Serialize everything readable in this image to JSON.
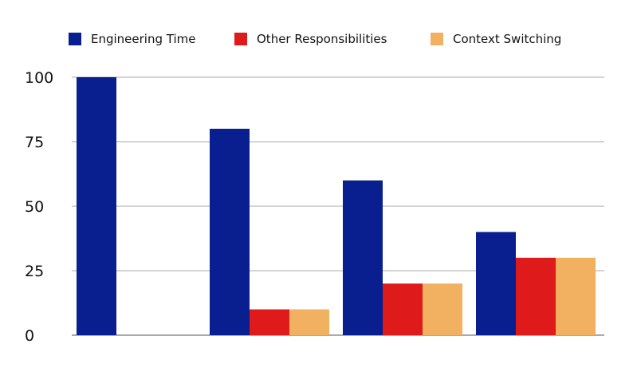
{
  "chart_data": {
    "type": "bar",
    "title": "",
    "xlabel": "",
    "ylabel": "",
    "categories": [
      "",
      "",
      "",
      ""
    ],
    "series": [
      {
        "name": "Engineering Time",
        "color": "#0a1f8f",
        "values": [
          100,
          80,
          60,
          40
        ]
      },
      {
        "name": "Other Responsibilities",
        "color": "#de1a1a",
        "values": [
          0,
          10,
          20,
          30
        ]
      },
      {
        "name": "Context Switching",
        "color": "#f2b061",
        "values": [
          0,
          10,
          20,
          30
        ]
      }
    ],
    "ylim": [
      0,
      100
    ],
    "yticks": [
      "0",
      "25",
      "50",
      "75",
      "100"
    ],
    "grid": true,
    "legend_position": "top"
  }
}
